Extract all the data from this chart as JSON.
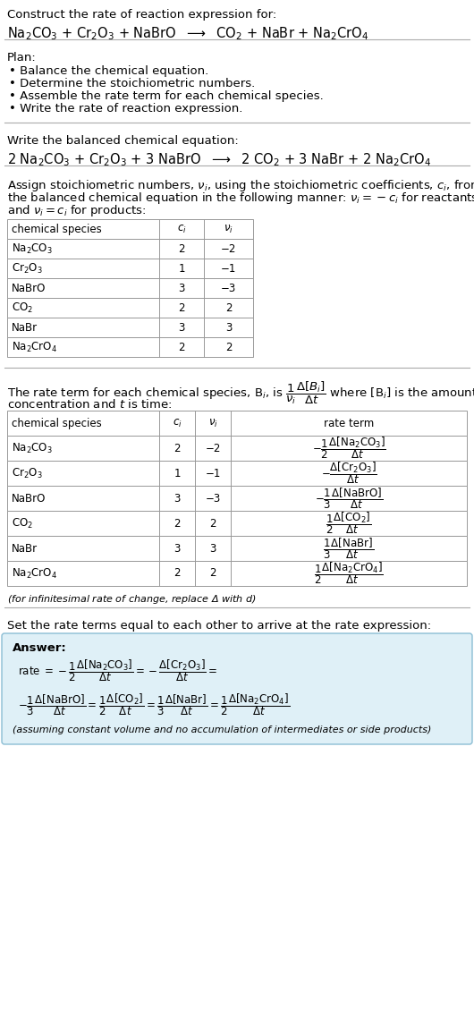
{
  "bg_color": "#ffffff",
  "text_color": "#000000",
  "title_line1": "Construct the rate of reaction expression for:",
  "plan_header": "Plan:",
  "plan_items": [
    "• Balance the chemical equation.",
    "• Determine the stoichiometric numbers.",
    "• Assemble the rate term for each chemical species.",
    "• Write the rate of reaction expression."
  ],
  "balanced_header": "Write the balanced chemical equation:",
  "stoich_intro": "Assign stoichiometric numbers, $\\nu_i$, using the stoichiometric coefficients, $c_i$, from the balanced chemical equation in the following manner: $\\nu_i = -c_i$ for reactants and $\\nu_i = c_i$ for products:",
  "table1_headers": [
    "chemical species",
    "$c_i$",
    "$\\nu_i$"
  ],
  "table1_rows": [
    [
      "Na$_2$CO$_3$",
      "2",
      "−2"
    ],
    [
      "Cr$_2$O$_3$",
      "1",
      "−1"
    ],
    [
      "NaBrO",
      "3",
      "−3"
    ],
    [
      "CO$_2$",
      "2",
      "2"
    ],
    [
      "NaBr",
      "3",
      "3"
    ],
    [
      "Na$_2$CrO$_4$",
      "2",
      "2"
    ]
  ],
  "rate_intro1": "The rate term for each chemical species, B$_i$, is $\\dfrac{1}{\\nu_i}\\dfrac{\\Delta[B_i]}{\\Delta t}$ where [B$_i$] is the amount",
  "rate_intro2": "concentration and $t$ is time:",
  "table2_headers": [
    "chemical species",
    "$c_i$",
    "$\\nu_i$",
    "rate term"
  ],
  "table2_rows": [
    [
      "Na$_2$CO$_3$",
      "2",
      "−2"
    ],
    [
      "Cr$_2$O$_3$",
      "1",
      "−1"
    ],
    [
      "NaBrO",
      "3",
      "−3"
    ],
    [
      "CO$_2$",
      "2",
      "2"
    ],
    [
      "NaBr",
      "3",
      "3"
    ],
    [
      "Na$_2$CrO$_4$",
      "2",
      "2"
    ]
  ],
  "rate_terms": [
    "$-\\dfrac{1}{2}\\dfrac{\\Delta[\\mathrm{Na_2CO_3}]}{\\Delta t}$",
    "$-\\dfrac{\\Delta[\\mathrm{Cr_2O_3}]}{\\Delta t}$",
    "$-\\dfrac{1}{3}\\dfrac{\\Delta[\\mathrm{NaBrO}]}{\\Delta t}$",
    "$\\dfrac{1}{2}\\dfrac{\\Delta[\\mathrm{CO_2}]}{\\Delta t}$",
    "$\\dfrac{1}{3}\\dfrac{\\Delta[\\mathrm{NaBr}]}{\\Delta t}$",
    "$\\dfrac{1}{2}\\dfrac{\\Delta[\\mathrm{Na_2CrO_4}]}{\\Delta t}$"
  ],
  "infinitesimal_note": "(for infinitesimal rate of change, replace Δ with $d$)",
  "set_rate_header": "Set the rate terms equal to each other to arrive at the rate expression:",
  "answer_box_color": "#dff0f7",
  "answer_box_border": "#8bbdd4"
}
